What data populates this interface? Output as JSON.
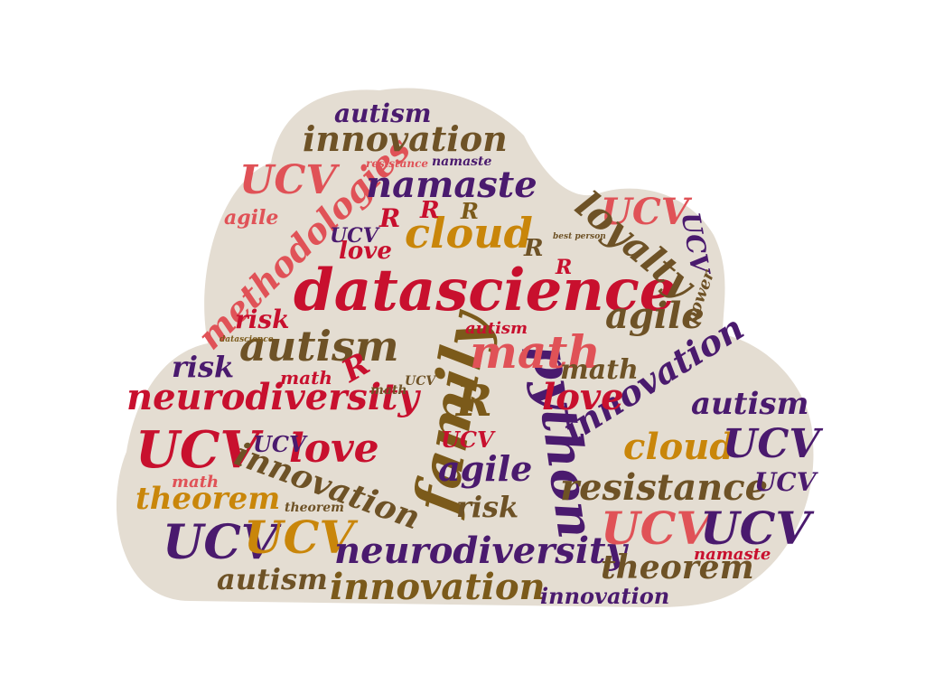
{
  "background_color": "#ffffff",
  "shape": {
    "name": "cloud-shape",
    "color": "#e4ddd2"
  },
  "palette": {
    "red": "#c8102e",
    "coral": "#e05257",
    "brown": "#6e5226",
    "purple": "#4a1a6e",
    "gold": "#c9860a",
    "olive": "#7b5a1a"
  },
  "words": [
    "datascience",
    "family",
    "python",
    "math",
    "cloud",
    "methodologies",
    "namaste",
    "innovation",
    "autism",
    "UCV",
    "neurodiversity",
    "agile",
    "loyalty",
    "love",
    "risk",
    "R",
    "theorem",
    "resistance",
    "power",
    "best person"
  ]
}
